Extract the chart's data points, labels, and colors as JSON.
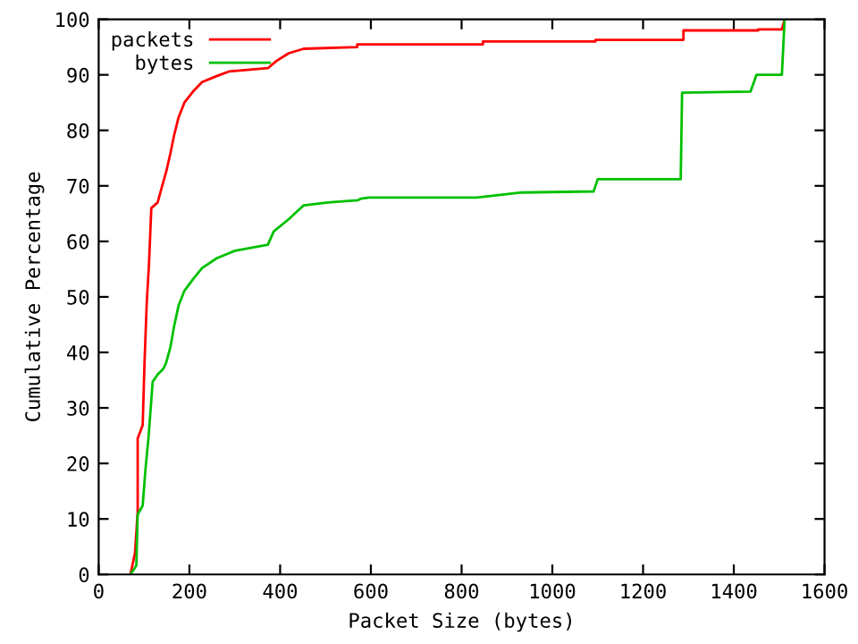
{
  "chart_data": {
    "type": "line",
    "xlabel": "Packet Size (bytes)",
    "ylabel": "Cumulative Percentage",
    "xlim": [
      0,
      1600
    ],
    "xticks": [
      0,
      200,
      400,
      600,
      800,
      1000,
      1200,
      1400,
      1600
    ],
    "ylim": [
      0,
      100
    ],
    "yticks": [
      0,
      10,
      20,
      30,
      40,
      50,
      60,
      70,
      80,
      90,
      100
    ],
    "grid": false,
    "legend": "top left",
    "marker": "none",
    "line_style": "solid",
    "series": [
      {
        "name": "packets",
        "color": "#ff0000",
        "x": [
          70,
          80,
          86,
          86,
          97,
          101,
          106,
          111,
          116,
          130,
          140,
          149,
          158,
          166,
          176,
          189,
          208,
          228,
          261,
          287,
          373,
          392,
          419,
          452,
          570,
          570,
          847,
          847,
          1095,
          1095,
          1289,
          1289,
          1454,
          1454,
          1506,
          1512
        ],
        "values": [
          0,
          3.8,
          11.3,
          24.5,
          26.9,
          38,
          49,
          56,
          66,
          67,
          70,
          72.6,
          75.8,
          79,
          82.3,
          85,
          87,
          88.7,
          89.8,
          90.6,
          91.2,
          92.5,
          93.9,
          94.7,
          95,
          95.5,
          95.5,
          96,
          96,
          96.3,
          96.3,
          98,
          98,
          98.2,
          98.2,
          100
        ]
      },
      {
        "name": "bytes",
        "color": "#00c000",
        "x": [
          70,
          83,
          86,
          97,
          103,
          110,
          119,
          130,
          143,
          149,
          158,
          166,
          176,
          189,
          208,
          228,
          261,
          300,
          373,
          386,
          419,
          452,
          505,
          571,
          578,
          596,
          833,
          933,
          1091,
          1100,
          1283,
          1286,
          1437,
          1450,
          1506,
          1512
        ],
        "values": [
          0,
          1.6,
          10.8,
          12.4,
          18.8,
          24.8,
          34.7,
          36,
          37.1,
          38.2,
          40.9,
          44.6,
          48.4,
          51.1,
          53.2,
          55.2,
          57,
          58.3,
          59.4,
          61.8,
          64,
          66.5,
          67,
          67.4,
          67.7,
          67.9,
          67.9,
          68.8,
          69,
          71.2,
          71.2,
          86.8,
          87,
          90,
          90,
          100
        ]
      }
    ]
  }
}
